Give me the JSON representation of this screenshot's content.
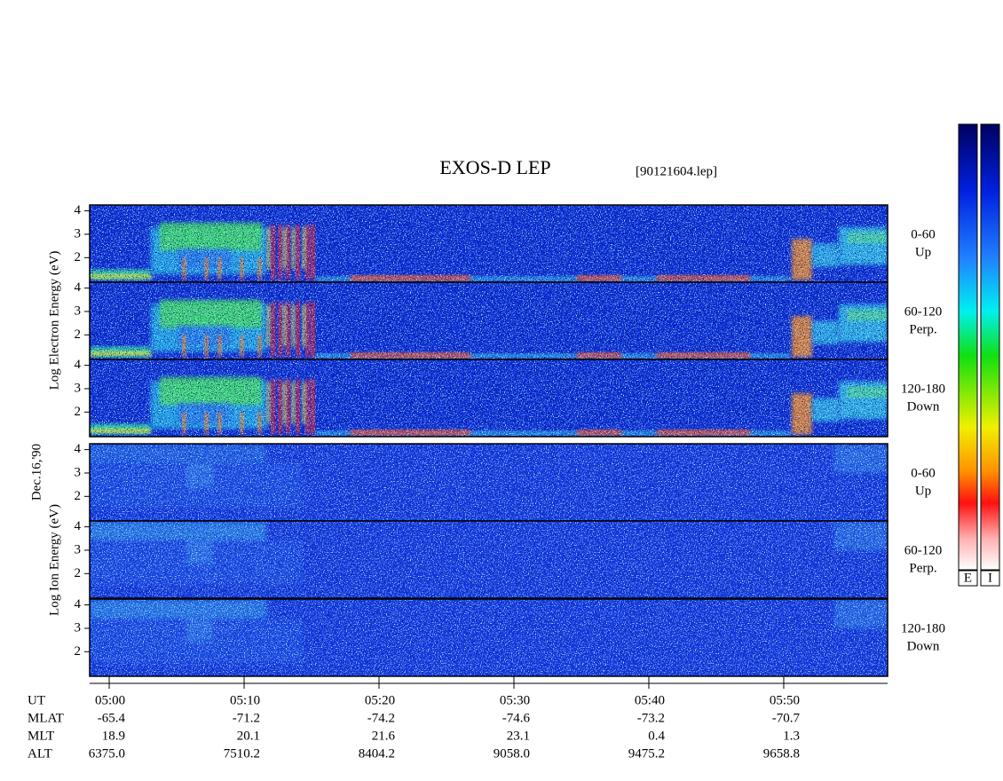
{
  "chart_data": {
    "type": "spectrogram",
    "title": "EXOS-D LEP",
    "file": "[90121604.lep]",
    "date": "Dec.16,'90",
    "groups": [
      "Log Electron Energy (eV)",
      "Log Ion Energy (eV)"
    ],
    "panels": [
      {
        "angle": "0-60",
        "direction": "Up"
      },
      {
        "angle": "60-120",
        "direction": "Perp."
      },
      {
        "angle": "120-180",
        "direction": "Down"
      },
      {
        "angle": "0-60",
        "direction": "Up"
      },
      {
        "angle": "60-120",
        "direction": "Perp."
      },
      {
        "angle": "120-180",
        "direction": "Down"
      }
    ],
    "ylim": [
      0.95,
      4.25
    ],
    "yticks": [
      2,
      3,
      4
    ],
    "xlim": [
      298.55,
      357.7
    ],
    "xticks": [
      {
        "value": 300,
        "label": "05:00"
      },
      {
        "value": 310,
        "label": "05:10"
      },
      {
        "value": 320,
        "label": "05:20"
      },
      {
        "value": 330,
        "label": "05:30"
      },
      {
        "value": 340,
        "label": "05:40"
      },
      {
        "value": 350,
        "label": "05:50"
      }
    ],
    "ephemeris": {
      "labels": [
        "UT",
        "MLAT",
        "MLT",
        "ALT"
      ],
      "rows": [
        [
          "-65.4",
          "-71.2",
          "-74.2",
          "-74.6",
          "-73.2",
          "-70.7"
        ],
        [
          "18.9",
          "20.1",
          "21.6",
          "23.1",
          "0.4",
          "1.3"
        ],
        [
          "6375.0",
          "7510.2",
          "8404.2",
          "9058.0",
          "9475.2",
          "9658.8"
        ]
      ]
    },
    "colorbars": [
      "E",
      "I"
    ]
  }
}
